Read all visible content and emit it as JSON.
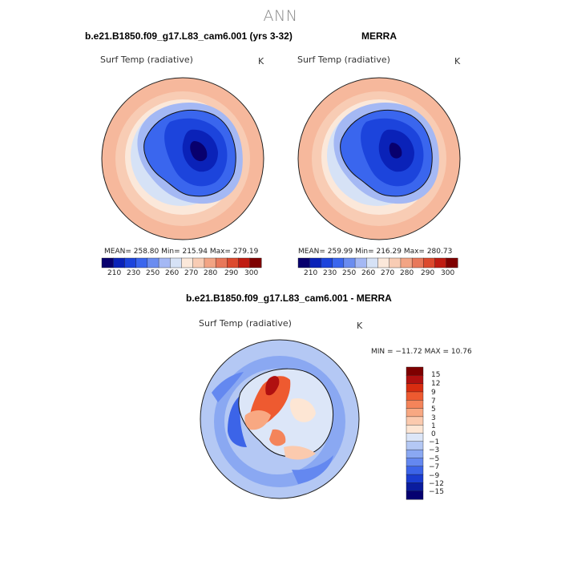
{
  "figure": {
    "title": "ANN"
  },
  "colors": {
    "abs_scale": [
      "#08006e",
      "#0a22b8",
      "#1c44dc",
      "#3a66ee",
      "#6a8cf0",
      "#a4b8f4",
      "#d6e2f6",
      "#fbe8da",
      "#f8ccb4",
      "#f2a484",
      "#e8785a",
      "#dc4a2e",
      "#c01c12",
      "#7e0000"
    ],
    "diff_scale": [
      "#7e0000",
      "#b01010",
      "#d82c10",
      "#ee5a30",
      "#f4845a",
      "#f8a882",
      "#fbcaae",
      "#fde6d4",
      "#dce6f8",
      "#b4c8f4",
      "#8aa8f2",
      "#6488f0",
      "#3c64e8",
      "#1a3cd0",
      "#0a1c9e",
      "#050070"
    ]
  },
  "chart_data": [
    {
      "type": "heatmap",
      "title": "b.e21.B1850.f09_g17.L83_cam6.001 (yrs 3-32)",
      "variable": "Surf Temp (radiative)",
      "units": "K",
      "stats": "MEAN= 258.80   Min= 215.94   Max= 279.19",
      "mean": 258.8,
      "min": 215.94,
      "max": 279.19,
      "colorbar_labels": [
        "210",
        "230",
        "250",
        "260",
        "270",
        "280",
        "290",
        "300"
      ]
    },
    {
      "type": "heatmap",
      "title": "MERRA",
      "variable": "Surf Temp (radiative)",
      "units": "K",
      "stats": "MEAN= 259.99   Min= 216.29   Max= 280.73",
      "mean": 259.99,
      "min": 216.29,
      "max": 280.73,
      "colorbar_labels": [
        "210",
        "230",
        "250",
        "260",
        "270",
        "280",
        "290",
        "300"
      ]
    },
    {
      "type": "heatmap",
      "title": "b.e21.B1850.f09_g17.L83_cam6.001 - MERRA",
      "variable": "Surf Temp (radiative)",
      "units": "K",
      "stats": "MIN = −11.72 MAX =  10.76",
      "min": -11.72,
      "max": 10.76,
      "colorbar_labels": [
        "15",
        "12",
        "9",
        "7",
        "5",
        "3",
        "1",
        "0",
        "−1",
        "−3",
        "−5",
        "−7",
        "−9",
        "−12",
        "−15"
      ]
    }
  ]
}
